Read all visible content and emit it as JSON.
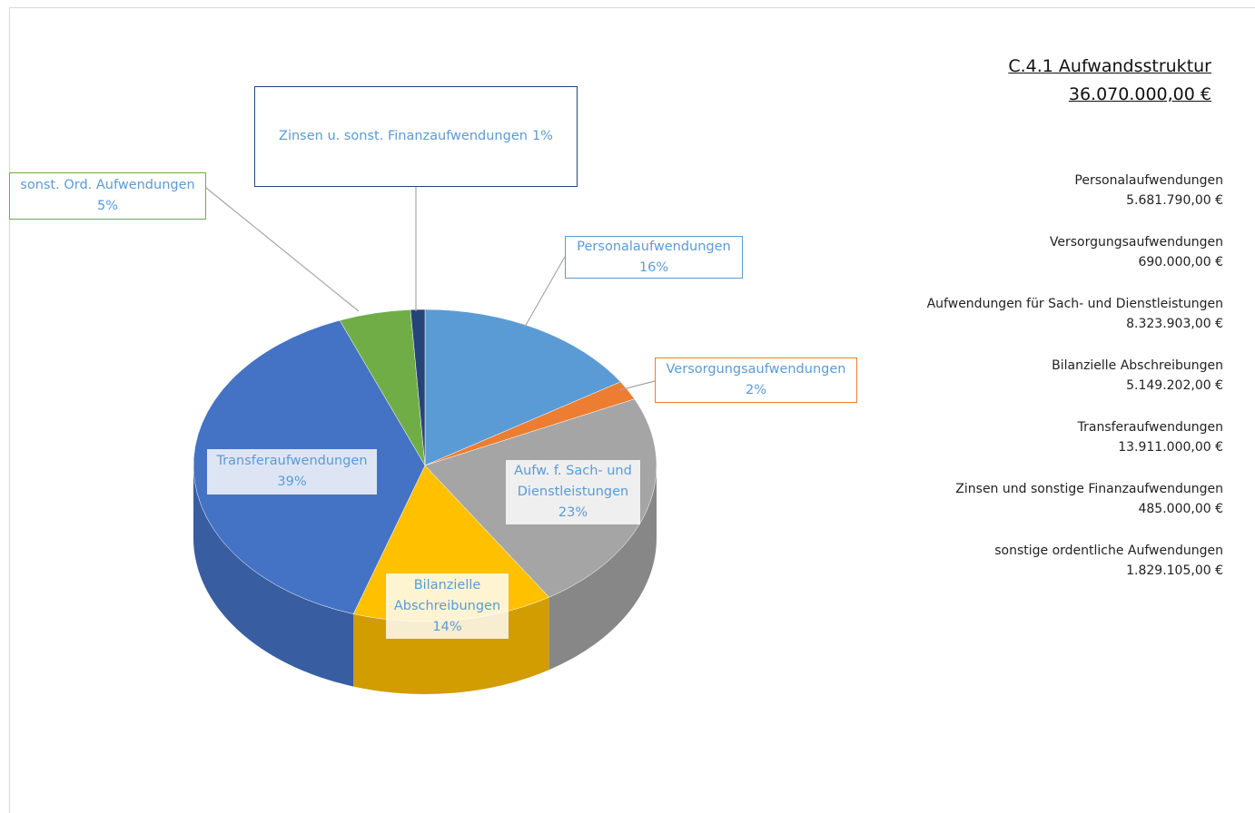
{
  "chart_data": {
    "type": "pie",
    "title": "C.4.1 Aufwandsstruktur",
    "subtitle": "36.070.000,00 €",
    "categories": [
      "Personalaufwendungen",
      "Versorgungsaufwendungen",
      "Aufw. f. Sach- und Dienstleistungen",
      "Bilanzielle Abschreibungen",
      "Transferaufwendungen",
      "sonst. Ord. Aufwendungen",
      "Zinsen u. sonst. Finanzaufwendungen"
    ],
    "values": [
      16,
      2,
      23,
      14,
      39,
      5,
      1
    ],
    "value_labels": [
      "16%",
      "2%",
      "23%",
      "14%",
      "39%",
      "5%",
      "1%"
    ],
    "colors": [
      "#5b9bd5",
      "#ed7d31",
      "#a5a5a5",
      "#ffc000",
      "#4472c4",
      "#70ad47",
      "#264478"
    ],
    "annotations": [
      {
        "name": "Personalaufwendungen",
        "amount": "5.681.790,00 €"
      },
      {
        "name": "Versorgungsaufwendungen",
        "amount": "690.000,00 €"
      },
      {
        "name": "Aufwendungen für Sach- und Dienstleistungen",
        "amount": "8.323.903,00 €"
      },
      {
        "name": "Bilanzielle Abschreibungen",
        "amount": "5.149.202,00 €"
      },
      {
        "name": "Transferaufwendungen",
        "amount": "13.911.000,00 €"
      },
      {
        "name": "Zinsen und sonstige Finanzaufwendungen",
        "amount": "485.000,00 €"
      },
      {
        "name": "sonstige ordentliche Aufwendungen",
        "amount": "1.829.105,00 €"
      }
    ]
  }
}
